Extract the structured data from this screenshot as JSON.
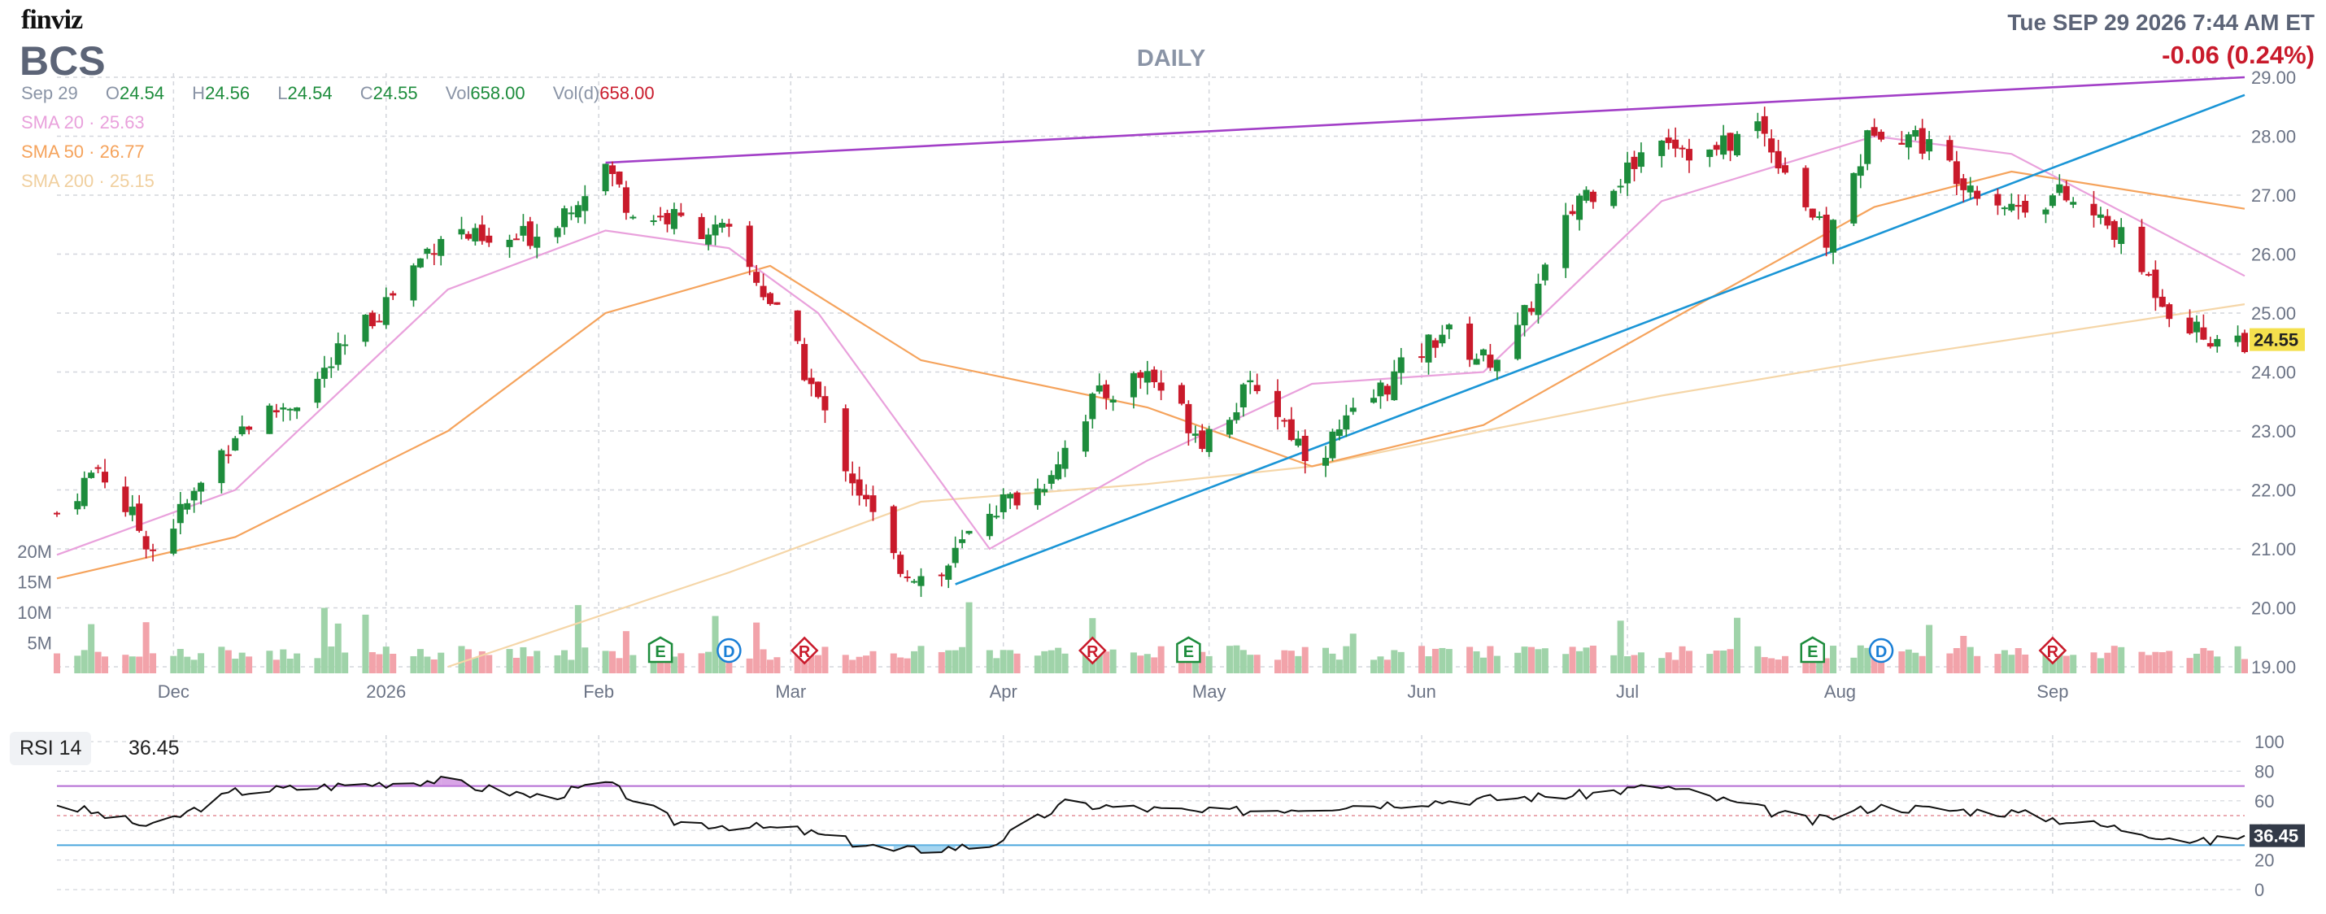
{
  "header": {
    "logo": "finviz",
    "ticker": "BCS",
    "period": "DAILY",
    "datetime": "Tue SEP 29 2026 7:44 AM ET",
    "change": "-0.06 (0.24%)"
  },
  "ohlc": {
    "date": "Sep 29",
    "open_label": "O",
    "open": "24.54",
    "high_label": "H",
    "high": "24.56",
    "low_label": "L",
    "low": "24.54",
    "close_label": "C",
    "close": "24.55",
    "vol_label": "Vol",
    "vol": "658.00",
    "vold_label": "Vol(d)",
    "vold": "658.00"
  },
  "sma": [
    {
      "label": "SMA 20",
      "value": "25.63",
      "color": "#e9a1dc"
    },
    {
      "label": "SMA 50",
      "value": "26.77",
      "color": "#f5a35c"
    },
    {
      "label": "SMA 200",
      "value": "25.15",
      "color": "#f5d6a8"
    }
  ],
  "colors": {
    "up": "#1d8c3c",
    "down": "#c91a2b",
    "up_vol": "#9fd3a9",
    "down_vol": "#f2a3aa",
    "trendline_top": "#a23fc7",
    "trendline_bottom": "#1a95d6",
    "grid": "#d3d6dc"
  },
  "price_axis": {
    "ticks": [
      "29.00",
      "28.00",
      "27.00",
      "26.00",
      "25.00",
      "24.00",
      "23.00",
      "22.00",
      "21.00",
      "20.00",
      "19.00"
    ],
    "last_price": "24.55"
  },
  "volume_axis": {
    "ticks": [
      "20M",
      "15M",
      "10M",
      "5M"
    ]
  },
  "time_axis": [
    "Dec",
    "2026",
    "Feb",
    "Mar",
    "Apr",
    "May",
    "Jun",
    "Jul",
    "Aug",
    "Sep"
  ],
  "events": [
    {
      "type": "E",
      "date": "2026-02-10",
      "color": "#1d8c3c"
    },
    {
      "type": "D",
      "date": "2026-02-20",
      "color": "#1a7fd6"
    },
    {
      "type": "R",
      "date": "2026-03-03",
      "color": "#c91a2b"
    },
    {
      "type": "R",
      "date": "2026-04-14",
      "color": "#c91a2b"
    },
    {
      "type": "E",
      "date": "2026-04-28",
      "color": "#1d8c3c"
    },
    {
      "type": "E",
      "date": "2026-07-28",
      "color": "#1d8c3c"
    },
    {
      "type": "D",
      "date": "2026-08-07",
      "color": "#1a7fd6"
    },
    {
      "type": "R",
      "date": "2026-09-01",
      "color": "#c91a2b"
    }
  ],
  "rsi": {
    "label": "RSI 14",
    "value": "36.45",
    "ticks": [
      "100",
      "80",
      "60",
      "40",
      "20",
      "0"
    ],
    "overbought": 70,
    "oversold": 30
  },
  "chart_data": {
    "type": "candlestick",
    "title": "BCS",
    "date_range": [
      "2025-11-14",
      "2026-09-29"
    ],
    "ylim": [
      19,
      29
    ],
    "price_path": [
      [
        "2025-11-14",
        21.6
      ],
      [
        "2025-11-20",
        22.4
      ],
      [
        "2025-11-28",
        21.0
      ],
      [
        "2025-12-04",
        21.9
      ],
      [
        "2025-12-10",
        23.0
      ],
      [
        "2025-12-20",
        23.6
      ],
      [
        "2026-01-01",
        25.2
      ],
      [
        "2026-01-10",
        26.5
      ],
      [
        "2026-01-16",
        26.1
      ],
      [
        "2026-01-24",
        26.4
      ],
      [
        "2026-02-02",
        27.5
      ],
      [
        "2026-02-06",
        26.7
      ],
      [
        "2026-02-12",
        26.6
      ],
      [
        "2026-02-20",
        26.3
      ],
      [
        "2026-02-26",
        25.2
      ],
      [
        "2026-03-02",
        24.3
      ],
      [
        "2026-03-08",
        22.7
      ],
      [
        "2026-03-16",
        20.8
      ],
      [
        "2026-03-22",
        20.4
      ],
      [
        "2026-03-30",
        21.7
      ],
      [
        "2026-04-06",
        22.0
      ],
      [
        "2026-04-14",
        23.5
      ],
      [
        "2026-04-22",
        24.0
      ],
      [
        "2026-04-30",
        22.9
      ],
      [
        "2026-05-08",
        23.8
      ],
      [
        "2026-05-16",
        22.5
      ],
      [
        "2026-05-26",
        23.7
      ],
      [
        "2026-06-04",
        24.7
      ],
      [
        "2026-06-10",
        24.2
      ],
      [
        "2026-06-14",
        24.4
      ],
      [
        "2026-06-24",
        27.0
      ],
      [
        "2026-06-30",
        27.3
      ],
      [
        "2026-07-06",
        28.1
      ],
      [
        "2026-07-12",
        27.6
      ],
      [
        "2026-07-20",
        28.2
      ],
      [
        "2026-07-26",
        27.1
      ],
      [
        "2026-07-30",
        26.2
      ],
      [
        "2026-08-06",
        28.2
      ],
      [
        "2026-08-12",
        28.0
      ],
      [
        "2026-08-20",
        27.2
      ],
      [
        "2026-08-26",
        26.8
      ],
      [
        "2026-09-02",
        27.0
      ],
      [
        "2026-09-10",
        26.4
      ],
      [
        "2026-09-18",
        25.1
      ],
      [
        "2026-09-23",
        24.6
      ],
      [
        "2026-09-29",
        24.55
      ]
    ],
    "sma_20_path": [
      [
        "2025-11-14",
        20.9
      ],
      [
        "2025-12-10",
        22.0
      ],
      [
        "2026-01-10",
        25.4
      ],
      [
        "2026-02-02",
        26.4
      ],
      [
        "2026-02-20",
        26.1
      ],
      [
        "2026-03-05",
        25.0
      ],
      [
        "2026-03-30",
        21.0
      ],
      [
        "2026-04-22",
        22.5
      ],
      [
        "2026-05-16",
        23.8
      ],
      [
        "2026-06-10",
        24.0
      ],
      [
        "2026-07-06",
        26.9
      ],
      [
        "2026-08-06",
        28.0
      ],
      [
        "2026-08-26",
        27.7
      ],
      [
        "2026-09-29",
        25.63
      ]
    ],
    "sma_50_path": [
      [
        "2025-11-14",
        20.5
      ],
      [
        "2025-12-10",
        21.2
      ],
      [
        "2026-01-10",
        23.0
      ],
      [
        "2026-02-02",
        25.0
      ],
      [
        "2026-02-26",
        25.8
      ],
      [
        "2026-03-20",
        24.2
      ],
      [
        "2026-04-22",
        23.4
      ],
      [
        "2026-05-16",
        22.4
      ],
      [
        "2026-06-10",
        23.1
      ],
      [
        "2026-07-06",
        24.8
      ],
      [
        "2026-08-06",
        26.8
      ],
      [
        "2026-08-26",
        27.4
      ],
      [
        "2026-09-29",
        26.77
      ]
    ],
    "sma_200_path": [
      [
        "2026-01-10",
        19.0
      ],
      [
        "2026-02-20",
        20.6
      ],
      [
        "2026-03-20",
        21.8
      ],
      [
        "2026-04-22",
        22.1
      ],
      [
        "2026-05-16",
        22.4
      ],
      [
        "2026-06-10",
        23.0
      ],
      [
        "2026-07-06",
        23.6
      ],
      [
        "2026-08-06",
        24.2
      ],
      [
        "2026-09-29",
        25.15
      ]
    ],
    "trendline_top": [
      [
        "2026-02-02",
        27.55
      ],
      [
        "2026-09-29",
        29.0
      ]
    ],
    "trendline_bottom": [
      [
        "2026-03-25",
        20.4
      ],
      [
        "2026-09-29",
        28.7
      ]
    ],
    "volume_range_m": [
      0,
      20
    ],
    "rsi_path": [
      [
        "2025-11-14",
        58
      ],
      [
        "2025-11-28",
        42
      ],
      [
        "2025-12-10",
        66
      ],
      [
        "2026-01-08",
        74
      ],
      [
        "2026-01-24",
        62
      ],
      [
        "2026-02-02",
        72
      ],
      [
        "2026-02-12",
        46
      ],
      [
        "2026-03-02",
        40
      ],
      [
        "2026-03-16",
        26
      ],
      [
        "2026-03-30",
        30
      ],
      [
        "2026-04-10",
        58
      ],
      [
        "2026-04-30",
        52
      ],
      [
        "2026-05-26",
        58
      ],
      [
        "2026-06-24",
        64
      ],
      [
        "2026-07-06",
        70
      ],
      [
        "2026-07-28",
        46
      ],
      [
        "2026-08-06",
        56
      ],
      [
        "2026-08-26",
        52
      ],
      [
        "2026-09-10",
        42
      ],
      [
        "2026-09-23",
        32
      ],
      [
        "2026-09-29",
        36.45
      ]
    ]
  }
}
